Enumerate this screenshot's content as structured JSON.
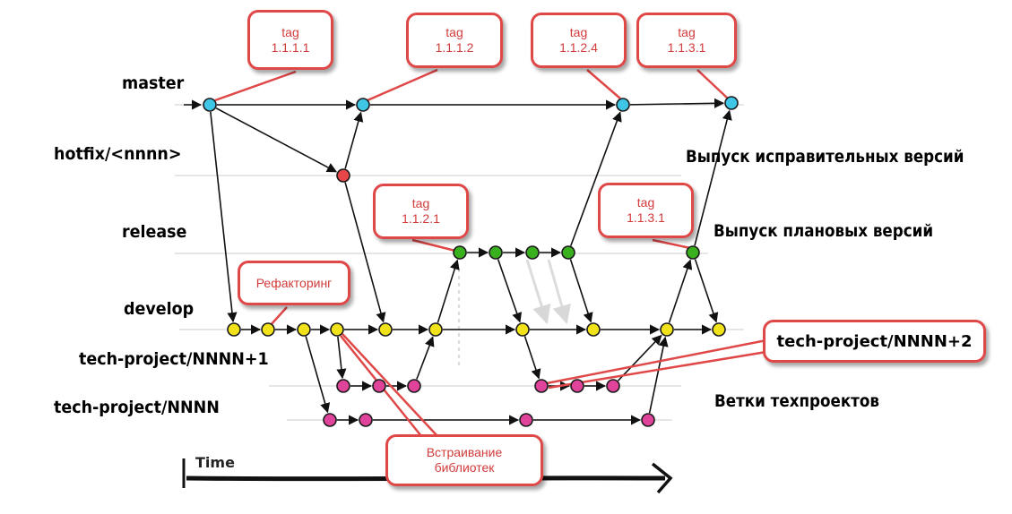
{
  "lanes": {
    "master": "master",
    "hotfix": "hotfix/<nnnn>",
    "release": "release",
    "develop": "develop",
    "tech_plus1": "tech-project/NNNN+1",
    "tech": "tech-project/NNNN"
  },
  "side_labels": {
    "hotfix_release": "Выпуск исправительных версий",
    "planned_release": "Выпуск плановых версий",
    "tech_branches": "Ветки техпроектов"
  },
  "callouts": {
    "tag_1111": {
      "title": "tag",
      "value": "1.1.1.1"
    },
    "tag_1112": {
      "title": "tag",
      "value": "1.1.1.2"
    },
    "tag_1124": {
      "title": "tag",
      "value": "1.1.2.4"
    },
    "tag_1131_master": {
      "title": "tag",
      "value": "1.1.3.1"
    },
    "tag_1121": {
      "title": "tag",
      "value": "1.1.2.1"
    },
    "tag_1131_release": {
      "title": "tag",
      "value": "1.1.3.1"
    },
    "refactoring": "Рефакторинг",
    "libs_line1": "Встраивание",
    "libs_line2": "библиотек",
    "tech_plus2": "tech-project/NNNN+2"
  },
  "time_label": "Time",
  "colors": {
    "master": "#3fc6e6",
    "hotfix": "#e8474a",
    "release": "#3ab01e",
    "develop": "#f2e21a",
    "tech": "#e0449a",
    "callout_border": "#e04848",
    "callout_text": "#d23b3b"
  }
}
